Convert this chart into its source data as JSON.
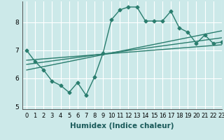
{
  "x": [
    0,
    1,
    2,
    3,
    4,
    5,
    6,
    7,
    8,
    9,
    10,
    11,
    12,
    13,
    14,
    15,
    16,
    17,
    18,
    19,
    20,
    21,
    22,
    23
  ],
  "line1": [
    7.0,
    6.6,
    6.3,
    5.9,
    5.75,
    5.5,
    5.85,
    5.4,
    6.05,
    6.9,
    8.1,
    8.45,
    8.55,
    8.55,
    8.05,
    8.05,
    8.05,
    8.4,
    7.8,
    7.65,
    7.25,
    7.55,
    7.25,
    7.3
  ],
  "line2_x": [
    0,
    23
  ],
  "line2_y": [
    6.3,
    7.7
  ],
  "line3_x": [
    0,
    23
  ],
  "line3_y": [
    6.5,
    7.45
  ],
  "line4_x": [
    0,
    23
  ],
  "line4_y": [
    6.65,
    7.2
  ],
  "color": "#2a7d6e",
  "bg_color": "#cce9e9",
  "grid_color": "#b0d8d8",
  "xlabel": "Humidex (Indice chaleur)",
  "ylim": [
    4.9,
    8.75
  ],
  "xlim": [
    -0.5,
    23
  ],
  "yticks": [
    5,
    6,
    7,
    8
  ],
  "xticks": [
    0,
    1,
    2,
    3,
    4,
    5,
    6,
    7,
    8,
    9,
    10,
    11,
    12,
    13,
    14,
    15,
    16,
    17,
    18,
    19,
    20,
    21,
    22,
    23
  ],
  "xtick_labels": [
    "0",
    "1",
    "2",
    "3",
    "4",
    "5",
    "6",
    "7",
    "8",
    "9",
    "10",
    "11",
    "12",
    "13",
    "14",
    "15",
    "16",
    "17",
    "18",
    "19",
    "20",
    "21",
    "22",
    "23"
  ],
  "marker": "D",
  "marker_size": 2.5,
  "linewidth": 1.0,
  "tick_fontsize": 6.0,
  "xlabel_fontsize": 7.5
}
